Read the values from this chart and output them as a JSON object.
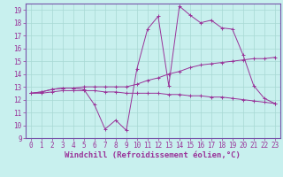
{
  "xlabel": "Windchill (Refroidissement éolien,°C)",
  "background_color": "#c8f0ee",
  "grid_color": "#a8d8d4",
  "line_color": "#993399",
  "xlim": [
    -0.5,
    23.5
  ],
  "ylim": [
    9,
    19.5
  ],
  "xticks": [
    0,
    1,
    2,
    3,
    4,
    5,
    6,
    7,
    8,
    9,
    10,
    11,
    12,
    13,
    14,
    15,
    16,
    17,
    18,
    19,
    20,
    21,
    22,
    23
  ],
  "yticks": [
    9,
    10,
    11,
    12,
    13,
    14,
    15,
    16,
    17,
    18,
    19
  ],
  "series": [
    {
      "x": [
        0,
        1,
        2,
        3,
        4,
        5,
        6,
        7,
        8,
        9,
        10,
        11,
        12,
        13,
        14,
        15,
        16,
        17,
        18,
        19,
        20,
        21,
        22,
        23
      ],
      "y": [
        12.5,
        12.6,
        12.8,
        12.9,
        12.9,
        12.8,
        11.6,
        9.7,
        10.4,
        9.6,
        14.4,
        17.5,
        18.5,
        13.1,
        19.3,
        18.6,
        18.0,
        18.2,
        17.6,
        17.5,
        15.5,
        13.1,
        12.1,
        11.7
      ]
    },
    {
      "x": [
        0,
        1,
        2,
        3,
        4,
        5,
        6,
        7,
        8,
        9,
        10,
        11,
        12,
        13,
        14,
        15,
        16,
        17,
        18,
        19,
        20,
        21,
        22,
        23
      ],
      "y": [
        12.5,
        12.5,
        12.6,
        12.7,
        12.7,
        12.7,
        12.7,
        12.6,
        12.6,
        12.5,
        12.5,
        12.5,
        12.5,
        12.4,
        12.4,
        12.3,
        12.3,
        12.2,
        12.2,
        12.1,
        12.0,
        11.9,
        11.8,
        11.7
      ]
    },
    {
      "x": [
        0,
        1,
        2,
        3,
        4,
        5,
        6,
        7,
        8,
        9,
        10,
        11,
        12,
        13,
        14,
        15,
        16,
        17,
        18,
        19,
        20,
        21,
        22,
        23
      ],
      "y": [
        12.5,
        12.6,
        12.8,
        12.9,
        12.9,
        13.0,
        13.0,
        13.0,
        13.0,
        13.0,
        13.2,
        13.5,
        13.7,
        14.0,
        14.2,
        14.5,
        14.7,
        14.8,
        14.9,
        15.0,
        15.1,
        15.2,
        15.2,
        15.3
      ]
    }
  ],
  "font_color": "#993399",
  "tick_fontsize": 5.5,
  "label_fontsize": 6.5,
  "spine_color": "#7755aa"
}
